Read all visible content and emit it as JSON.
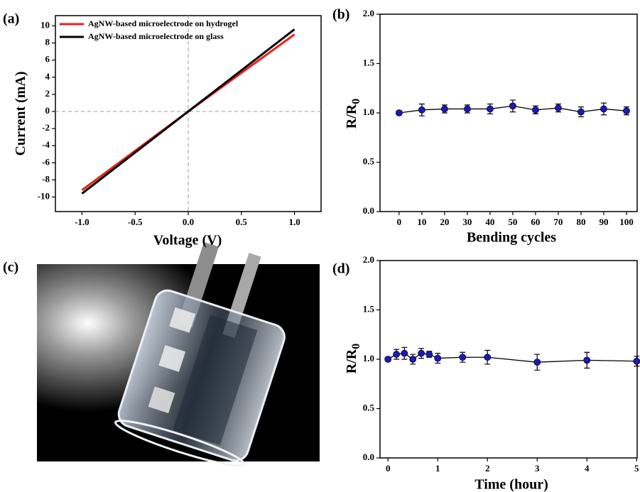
{
  "photo": {
    "panel_label": "(c)"
  },
  "chart_data": [
    {
      "type": "line",
      "panel_label": "(a)",
      "x_label": "Voltage (V)",
      "y_label": "Current (mA)",
      "x": [
        -1,
        0,
        1
      ],
      "series": [
        {
          "name": "AgNW-based microelectrode on hydrogel",
          "color": "#e8201c",
          "values": [
            -9.2,
            0,
            9.0
          ]
        },
        {
          "name": "AgNW-based microelectrode on glass",
          "color": "#000000",
          "values": [
            -9.6,
            0,
            9.6
          ]
        }
      ],
      "xlim": [
        -1.25,
        1.25
      ],
      "ylim": [
        -11.7,
        11.2
      ],
      "xticks": [
        {
          "value": -1,
          "label": "-1.0"
        },
        {
          "value": -0.5,
          "label": "-0.5"
        },
        {
          "value": 0,
          "label": "0.0"
        },
        {
          "value": 0.5,
          "label": "0.5"
        },
        {
          "value": 1,
          "label": "1.0"
        }
      ],
      "yticks": [
        -10,
        -8,
        -6,
        -4,
        -2,
        0,
        2,
        4,
        6,
        8,
        10
      ],
      "zero_lines": true,
      "legend": "upper left"
    },
    {
      "type": "errorbar",
      "panel_label": "(b)",
      "x_label": "Bending cycles",
      "y_label": "R/R",
      "y_label_subscript": "0",
      "x": [
        0,
        10,
        20,
        30,
        40,
        50,
        60,
        70,
        80,
        90,
        100
      ],
      "values": [
        1.0,
        1.03,
        1.04,
        1.04,
        1.04,
        1.07,
        1.03,
        1.05,
        1.01,
        1.04,
        1.02
      ],
      "errors": [
        0.02,
        0.06,
        0.04,
        0.04,
        0.05,
        0.06,
        0.04,
        0.04,
        0.05,
        0.06,
        0.04
      ],
      "color": "#000000",
      "marker_color": "#1c1cb0",
      "xlim": [
        -8.4,
        104.7
      ],
      "ylim": [
        0,
        2
      ],
      "xticks": [
        0,
        10,
        20,
        30,
        40,
        50,
        60,
        70,
        80,
        90,
        100
      ],
      "yticks": [
        {
          "value": 0,
          "label": "0.0"
        },
        {
          "value": 0.5,
          "label": "0.5"
        },
        {
          "value": 1,
          "label": "1.0"
        },
        {
          "value": 1.5,
          "label": "1.5"
        },
        {
          "value": 2,
          "label": "2.0"
        }
      ]
    },
    {
      "type": "errorbar",
      "panel_label": "(d)",
      "x_label": "Time (hour)",
      "y_label": "R/R",
      "y_label_subscript": "0",
      "x": [
        0,
        0.17,
        0.33,
        0.5,
        0.67,
        0.83,
        1,
        1.5,
        2,
        3,
        4,
        5
      ],
      "values": [
        1.0,
        1.05,
        1.06,
        1.0,
        1.06,
        1.05,
        1.01,
        1.02,
        1.02,
        0.97,
        0.99,
        0.98
      ],
      "errors": [
        0.02,
        0.05,
        0.06,
        0.05,
        0.05,
        0.03,
        0.05,
        0.05,
        0.07,
        0.08,
        0.08,
        0.05
      ],
      "color": "#000000",
      "marker_color": "#1c1cb0",
      "xlim": [
        -0.16,
        5.01
      ],
      "ylim": [
        0,
        2
      ],
      "xticks": [
        0,
        1,
        2,
        3,
        4,
        5
      ],
      "yticks": [
        {
          "value": 0,
          "label": "0.0"
        },
        {
          "value": 0.5,
          "label": "0.5"
        },
        {
          "value": 1,
          "label": "1.0"
        },
        {
          "value": 1.5,
          "label": "1.5"
        },
        {
          "value": 2,
          "label": "2.0"
        }
      ]
    }
  ]
}
